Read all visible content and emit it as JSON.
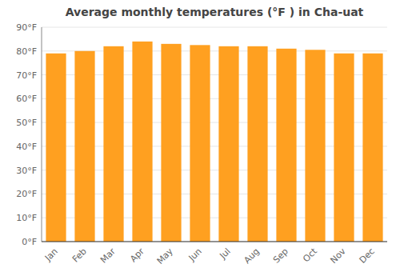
{
  "chart_data": {
    "type": "bar",
    "title": "Average monthly temperatures (°F ) in Cha-uat",
    "categories": [
      "Jan",
      "Feb",
      "Mar",
      "Apr",
      "May",
      "Jun",
      "Jul",
      "Aug",
      "Sep",
      "Oct",
      "Nov",
      "Dec"
    ],
    "values": [
      79,
      80,
      82,
      84,
      83,
      82.5,
      82,
      82,
      81,
      80.5,
      79,
      79
    ],
    "color": "#FFA020",
    "ylim": [
      0,
      90
    ],
    "yticks": [
      {
        "value": 0,
        "label": "0°F"
      },
      {
        "value": 10,
        "label": "10°F"
      },
      {
        "value": 20,
        "label": "20°F"
      },
      {
        "value": 30,
        "label": "30°F"
      },
      {
        "value": 40,
        "label": "40°F"
      },
      {
        "value": 50,
        "label": "50°F"
      },
      {
        "value": 60,
        "label": "60°F"
      },
      {
        "value": 70,
        "label": "70°F"
      },
      {
        "value": 80,
        "label": "80°F"
      },
      {
        "value": 90,
        "label": "90°F"
      }
    ],
    "grid": true
  }
}
